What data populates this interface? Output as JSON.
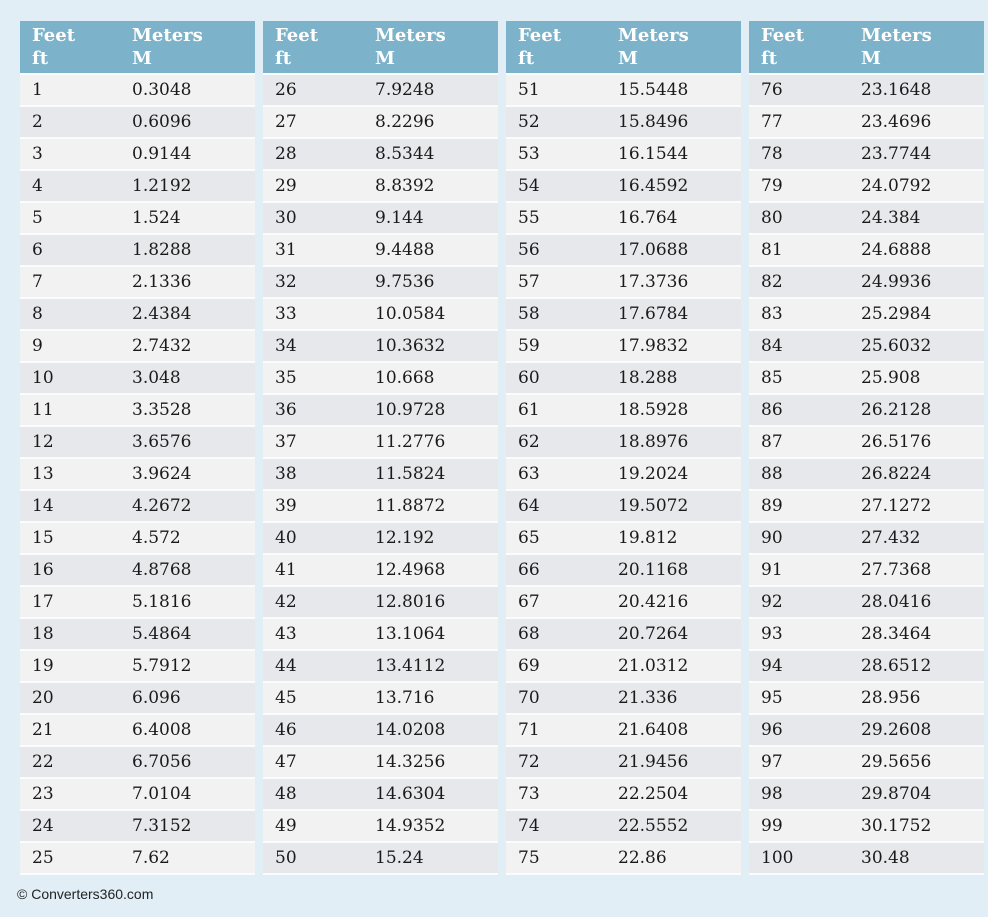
{
  "page": {
    "background": "#e1eef6",
    "footer_text": "© Converters360.com"
  },
  "colors": {
    "header_bg": "#7cb3ca",
    "header_text": "#ffffff",
    "row_odd": "#f2f2f2",
    "row_even": "#e7e8eb",
    "row_separator": "#fbfcfd",
    "cell_text": "#1a1a1a"
  },
  "header": {
    "feet_line1": "Feet",
    "feet_line2": "ft",
    "meters_line1": "Meters",
    "meters_line2": "M"
  },
  "chart_data": {
    "type": "table",
    "columns": [
      "Feet ft",
      "Meters M"
    ],
    "segments": [
      {
        "rows": [
          [
            1,
            "0.3048"
          ],
          [
            2,
            "0.6096"
          ],
          [
            3,
            "0.9144"
          ],
          [
            4,
            "1.2192"
          ],
          [
            5,
            "1.524"
          ],
          [
            6,
            "1.8288"
          ],
          [
            7,
            "2.1336"
          ],
          [
            8,
            "2.4384"
          ],
          [
            9,
            "2.7432"
          ],
          [
            10,
            "3.048"
          ],
          [
            11,
            "3.3528"
          ],
          [
            12,
            "3.6576"
          ],
          [
            13,
            "3.9624"
          ],
          [
            14,
            "4.2672"
          ],
          [
            15,
            "4.572"
          ],
          [
            16,
            "4.8768"
          ],
          [
            17,
            "5.1816"
          ],
          [
            18,
            "5.4864"
          ],
          [
            19,
            "5.7912"
          ],
          [
            20,
            "6.096"
          ],
          [
            21,
            "6.4008"
          ],
          [
            22,
            "6.7056"
          ],
          [
            23,
            "7.0104"
          ],
          [
            24,
            "7.3152"
          ],
          [
            25,
            "7.62"
          ]
        ]
      },
      {
        "rows": [
          [
            26,
            "7.9248"
          ],
          [
            27,
            "8.2296"
          ],
          [
            28,
            "8.5344"
          ],
          [
            29,
            "8.8392"
          ],
          [
            30,
            "9.144"
          ],
          [
            31,
            "9.4488"
          ],
          [
            32,
            "9.7536"
          ],
          [
            33,
            "10.0584"
          ],
          [
            34,
            "10.3632"
          ],
          [
            35,
            "10.668"
          ],
          [
            36,
            "10.9728"
          ],
          [
            37,
            "11.2776"
          ],
          [
            38,
            "11.5824"
          ],
          [
            39,
            "11.8872"
          ],
          [
            40,
            "12.192"
          ],
          [
            41,
            "12.4968"
          ],
          [
            42,
            "12.8016"
          ],
          [
            43,
            "13.1064"
          ],
          [
            44,
            "13.4112"
          ],
          [
            45,
            "13.716"
          ],
          [
            46,
            "14.0208"
          ],
          [
            47,
            "14.3256"
          ],
          [
            48,
            "14.6304"
          ],
          [
            49,
            "14.9352"
          ],
          [
            50,
            "15.24"
          ]
        ]
      },
      {
        "rows": [
          [
            51,
            "15.5448"
          ],
          [
            52,
            "15.8496"
          ],
          [
            53,
            "16.1544"
          ],
          [
            54,
            "16.4592"
          ],
          [
            55,
            "16.764"
          ],
          [
            56,
            "17.0688"
          ],
          [
            57,
            "17.3736"
          ],
          [
            58,
            "17.6784"
          ],
          [
            59,
            "17.9832"
          ],
          [
            60,
            "18.288"
          ],
          [
            61,
            "18.5928"
          ],
          [
            62,
            "18.8976"
          ],
          [
            63,
            "19.2024"
          ],
          [
            64,
            "19.5072"
          ],
          [
            65,
            "19.812"
          ],
          [
            66,
            "20.1168"
          ],
          [
            67,
            "20.4216"
          ],
          [
            68,
            "20.7264"
          ],
          [
            69,
            "21.0312"
          ],
          [
            70,
            "21.336"
          ],
          [
            71,
            "21.6408"
          ],
          [
            72,
            "21.9456"
          ],
          [
            73,
            "22.2504"
          ],
          [
            74,
            "22.5552"
          ],
          [
            75,
            "22.86"
          ]
        ]
      },
      {
        "rows": [
          [
            76,
            "23.1648"
          ],
          [
            77,
            "23.4696"
          ],
          [
            78,
            "23.7744"
          ],
          [
            79,
            "24.0792"
          ],
          [
            80,
            "24.384"
          ],
          [
            81,
            "24.6888"
          ],
          [
            82,
            "24.9936"
          ],
          [
            83,
            "25.2984"
          ],
          [
            84,
            "25.6032"
          ],
          [
            85,
            "25.908"
          ],
          [
            86,
            "26.2128"
          ],
          [
            87,
            "26.5176"
          ],
          [
            88,
            "26.8224"
          ],
          [
            89,
            "27.1272"
          ],
          [
            90,
            "27.432"
          ],
          [
            91,
            "27.7368"
          ],
          [
            92,
            "28.0416"
          ],
          [
            93,
            "28.3464"
          ],
          [
            94,
            "28.6512"
          ],
          [
            95,
            "28.956"
          ],
          [
            96,
            "29.2608"
          ],
          [
            97,
            "29.5656"
          ],
          [
            98,
            "29.8704"
          ],
          [
            99,
            "30.1752"
          ],
          [
            100,
            "30.48"
          ]
        ]
      }
    ]
  }
}
